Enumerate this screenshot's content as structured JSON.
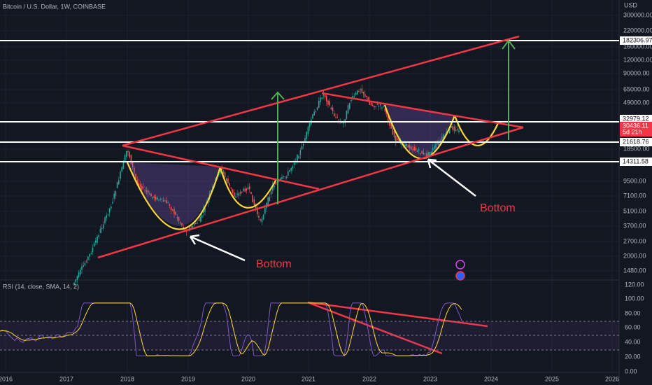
{
  "header": {
    "title": "Bitcoin / U.S. Dollar, 1W, COINBASE"
  },
  "price_axis": {
    "unit": "USD",
    "labels": [
      "300000.00",
      "220000.00",
      "160000.00",
      "120000.00",
      "90000.00",
      "65000.00",
      "49000.00",
      "18500.00",
      "9500.00",
      "7100.00",
      "5100.00",
      "3700.00",
      "2700.00",
      "2000.00",
      "1480.00"
    ]
  },
  "levels": [
    "182306.97",
    "32979.12",
    "21618.76",
    "14311.58"
  ],
  "current_price": {
    "price": "30436.11",
    "countdown": "5d 21h"
  },
  "annotations": [
    "Bottom",
    "Bottom"
  ],
  "rsi": {
    "title": "RSI (14, close, SMA, 14, 2)",
    "labels": [
      "120.00",
      "100.00",
      "80.00",
      "60.00",
      "40.00",
      "20.00",
      "0.00"
    ]
  },
  "time_axis": {
    "labels": [
      "2016",
      "2017",
      "2018",
      "2019",
      "2020",
      "2021",
      "2022",
      "2023",
      "2024",
      "2025",
      "2026"
    ]
  }
}
